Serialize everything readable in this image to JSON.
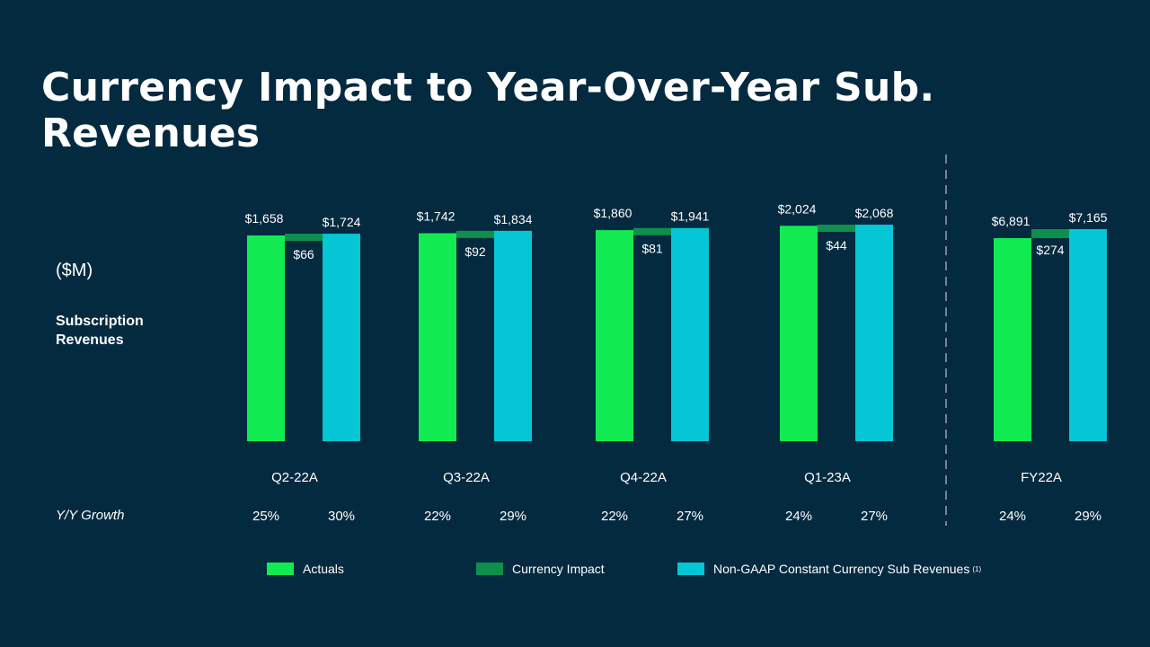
{
  "title": "Currency Impact to Year-Over-Year Sub. Revenues",
  "units_label": "($M)",
  "series_label": "Subscription Revenues",
  "growth_label": "Y/Y Growth",
  "colors": {
    "actuals": "#12ea52",
    "currency_impact": "#0e8f4c",
    "constant_currency": "#05c6d4",
    "divider": "#6f8596"
  },
  "chart_data": {
    "type": "bar",
    "categories": [
      "Q2-22A",
      "Q3-22A",
      "Q4-22A",
      "Q1-23A",
      "FY22A"
    ],
    "series": [
      {
        "name": "Actuals",
        "values": [
          1658,
          1742,
          1860,
          2024,
          6891
        ],
        "labels": [
          "$1,658",
          "$1,742",
          "$1,860",
          "$2,024",
          "$6,891"
        ]
      },
      {
        "name": "Currency Impact",
        "values": [
          66,
          92,
          81,
          44,
          274
        ],
        "labels": [
          "$66",
          "$92",
          "$81",
          "$44",
          "$274"
        ]
      },
      {
        "name": "Non-GAAP Constant Currency Sub Revenues",
        "values": [
          1724,
          1834,
          1941,
          2068,
          7165
        ],
        "labels": [
          "$1,724",
          "$1,834",
          "$1,941",
          "$2,068",
          "$7,165"
        ]
      }
    ],
    "growth": {
      "actuals": [
        "25%",
        "22%",
        "22%",
        "24%",
        "24%"
      ],
      "constant_currency": [
        "30%",
        "29%",
        "27%",
        "27%",
        "29%"
      ]
    },
    "legend": {
      "actuals": "Actuals",
      "currency_impact": "Currency Impact",
      "constant_currency": "Non-GAAP Constant Currency Sub Revenues",
      "footnote": "(1)"
    }
  }
}
